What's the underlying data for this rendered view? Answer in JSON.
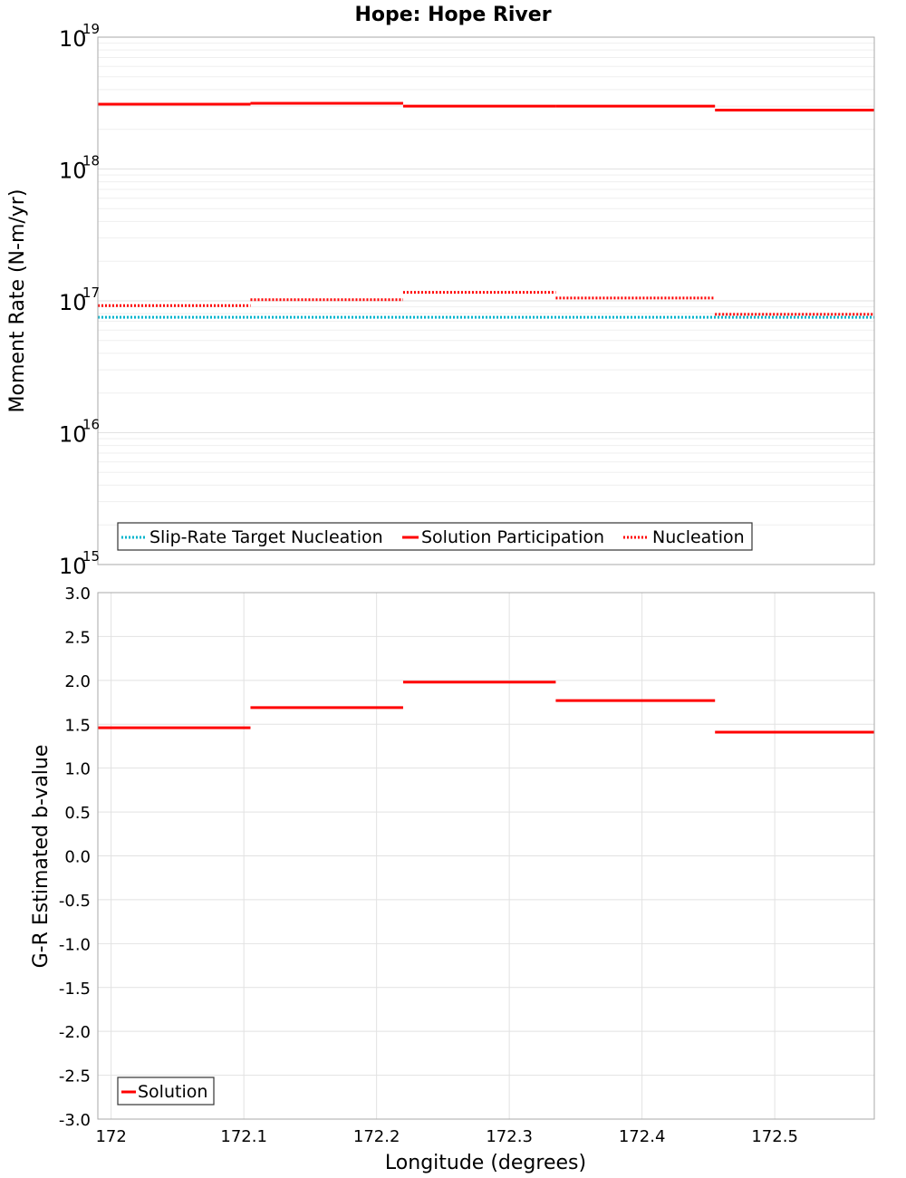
{
  "title": "Hope: Hope River",
  "chart_data": [
    {
      "type": "line",
      "subtype": "step",
      "ylabel": "Moment Rate (N-m/yr)",
      "yscale": "log",
      "ylim": [
        1000000000000000.0,
        1e+19
      ],
      "ytick_base": "10",
      "ytick_exponents": [
        "15",
        "16",
        "17",
        "18",
        "19"
      ],
      "xlim": [
        171.99,
        172.575
      ],
      "grid": true,
      "legend_position": "bottom-left",
      "series": [
        {
          "name": "Slip-Rate Target Nucleation",
          "style": "dotted",
          "color": "#00b4cc",
          "segments": [
            [
              171.99,
              172.575,
              7.5e+16
            ]
          ]
        },
        {
          "name": "Solution Participation",
          "style": "solid",
          "color": "#ff0000",
          "segments": [
            [
              171.99,
              172.105,
              3.1e+18
            ],
            [
              172.105,
              172.22,
              3.15e+18
            ],
            [
              172.22,
              172.335,
              3e+18
            ],
            [
              172.335,
              172.455,
              3e+18
            ],
            [
              172.455,
              172.575,
              2.8e+18
            ]
          ]
        },
        {
          "name": "Nucleation",
          "style": "dotted",
          "color": "#ff0000",
          "segments": [
            [
              171.99,
              172.105,
              9.2e+16
            ],
            [
              172.105,
              172.22,
              1.02e+17
            ],
            [
              172.22,
              172.335,
              1.16e+17
            ],
            [
              172.335,
              172.455,
              1.05e+17
            ],
            [
              172.455,
              172.575,
              7.9e+16
            ]
          ]
        }
      ]
    },
    {
      "type": "line",
      "subtype": "step",
      "xlabel": "Longitude (degrees)",
      "ylabel": "G-R Estimated b-value",
      "ylim": [
        -3.0,
        3.0
      ],
      "yticks": [
        "-3.0",
        "-2.5",
        "-2.0",
        "-1.5",
        "-1.0",
        "-0.5",
        "0.0",
        "0.5",
        "1.0",
        "1.5",
        "2.0",
        "2.5",
        "3.0"
      ],
      "xlim": [
        171.99,
        172.575
      ],
      "xticks": [
        "172",
        "172.1",
        "172.2",
        "172.3",
        "172.4",
        "172.5"
      ],
      "grid": true,
      "legend_position": "bottom-left",
      "series": [
        {
          "name": "Solution",
          "style": "solid",
          "color": "#ff0000",
          "segments": [
            [
              171.99,
              172.105,
              1.46
            ],
            [
              172.105,
              172.22,
              1.69
            ],
            [
              172.22,
              172.335,
              1.98
            ],
            [
              172.335,
              172.455,
              1.77
            ],
            [
              172.455,
              172.575,
              1.41
            ]
          ]
        }
      ]
    }
  ]
}
